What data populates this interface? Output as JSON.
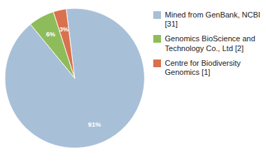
{
  "chart_data": {
    "type": "pie",
    "categories": [
      "Mined from GenBank, NCBI [31]",
      "Genomics BioScience and\nTechnology Co., Ltd [2]",
      "Centre for Biodiversity\nGenomics [1]"
    ],
    "values": [
      91,
      6,
      3
    ],
    "value_labels": [
      "91%",
      "6%",
      "3%"
    ],
    "colors": [
      "#a8bfd8",
      "#8fbc5a",
      "#d9714e"
    ],
    "data_labels": true,
    "legend": "right"
  }
}
